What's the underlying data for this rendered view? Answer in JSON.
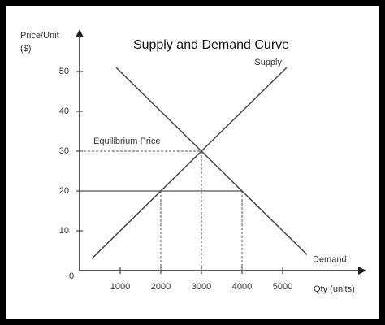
{
  "chart_data": {
    "type": "line",
    "title": "Supply and Demand Curve",
    "xlabel": "Qty (units)",
    "ylabel": [
      "Price/Unit",
      "($)"
    ],
    "origin_label": "0",
    "xlim": [
      0,
      7000
    ],
    "ylim": [
      0,
      60
    ],
    "xticks": [
      1000,
      2000,
      3000,
      4000,
      5000
    ],
    "yticks": [
      10,
      20,
      30,
      40,
      50
    ],
    "series": [
      {
        "name": "Supply",
        "color": "#444444",
        "x": [
          300,
          5100
        ],
        "values": [
          3,
          51
        ]
      },
      {
        "name": "Demand",
        "color": "#444444",
        "x": [
          900,
          5600
        ],
        "values": [
          51,
          4
        ]
      }
    ],
    "equilibrium": {
      "label": "Equilibrium Price",
      "x": 3000,
      "y": 30
    },
    "price_line": {
      "y": 20,
      "x": [
        2000,
        4000
      ]
    }
  }
}
